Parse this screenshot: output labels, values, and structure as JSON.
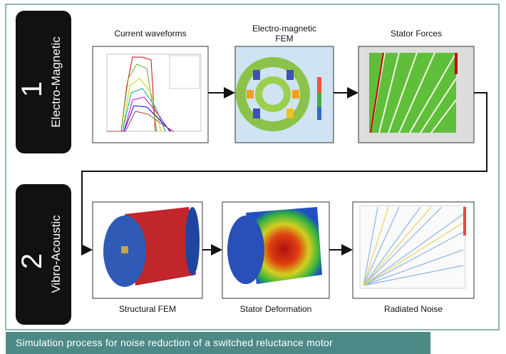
{
  "stages": [
    {
      "number": "1",
      "label": "Electro-Magnetic",
      "panels": [
        {
          "title": "Current waveforms"
        },
        {
          "title": "Electro-magnetic FEM"
        },
        {
          "title": "Stator Forces"
        }
      ]
    },
    {
      "number": "2",
      "label": "Vibro-Acoustic",
      "panels": [
        {
          "title": "Structural FEM"
        },
        {
          "title": "Stator Deformation"
        },
        {
          "title": "Radiated Noise"
        }
      ]
    }
  ],
  "caption": "Simulation process for noise reduction of a switched reluctance motor"
}
